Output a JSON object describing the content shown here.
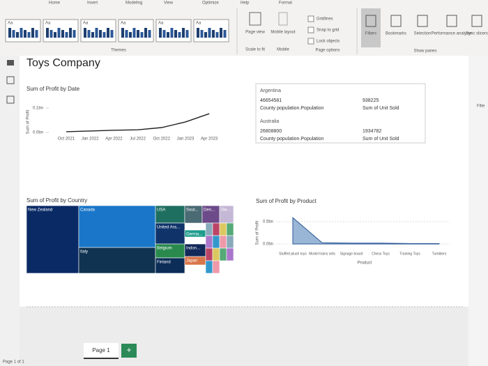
{
  "ribbon": {
    "tabs": [
      "Home",
      "Insert",
      "Modeling",
      "View",
      "Optimize",
      "Help",
      "Format"
    ],
    "theme_label": "Themes",
    "theme_swatch": "Aa",
    "buttons": [
      {
        "label": "Page view",
        "group": "Scale to fit"
      },
      {
        "label": "Mobile layout",
        "group": "Mobile"
      }
    ],
    "page_options": [
      "Gridlines",
      "Snap to grid",
      "Lock objects"
    ],
    "page_options_group": "Page options",
    "panes": [
      "Filters",
      "Bookmarks",
      "Selection",
      "Performance analyzer",
      "Sync slicers"
    ],
    "panes_group": "Show panes"
  },
  "report": {
    "title": "Toys Company"
  },
  "line_chart": {
    "type": "line",
    "title": "Sum of Profit by Date",
    "y_axis_title": "Sum of Profit",
    "categories": [
      "Oct 2021",
      "Jan 2022",
      "Apr 2022",
      "Jul 2022",
      "Oct 2022",
      "Jan 2023",
      "Apr 2023"
    ],
    "values": [
      0.003,
      0.006,
      0.009,
      0.011,
      0.02,
      0.043,
      0.077
    ],
    "color": "#1f1f1f",
    "ylim": [
      0,
      0.1
    ],
    "yticks": [
      {
        "value": 0,
        "label": "0.0bn"
      },
      {
        "value": 0.1,
        "label": "0.1bn"
      }
    ]
  },
  "table": {
    "rows": [
      [
        "Argentina",
        "46654581",
        "County population.Population",
        "938225",
        "Sum of Unit Sold"
      ],
      [
        "Australia",
        "26808800",
        "County population.Population",
        "1934782",
        "Sum of Unit Sold"
      ]
    ]
  },
  "treemap": {
    "title": "Sum of Profit by Country",
    "tiles": [
      "New Zealand",
      "Canada",
      "Italy",
      "USA",
      "Sout...",
      "Den...",
      "Sw...",
      "United Ara...",
      "Germa...",
      "Belgium",
      "Indon...",
      "Finland",
      "Japan"
    ]
  },
  "area_chart": {
    "type": "area",
    "title": "Sum of Profit by Product",
    "x_axis_title": "Product",
    "y_axis_title": "Sum of Profit",
    "categories": [
      "Stuffed plush toys",
      "Model trains sets",
      "Signage board",
      "Chess Toys",
      "Training Toys",
      "Tumblers"
    ],
    "values": [
      0.59,
      0.03,
      0.02,
      0.02,
      0.01,
      0.01
    ],
    "color": "#9ab6d6",
    "ylim": [
      0,
      0.5
    ],
    "yticks": [
      {
        "value": 0,
        "label": "0.0bn"
      },
      {
        "value": 0.5,
        "label": "0.5bn"
      }
    ]
  },
  "pages": {
    "tab": "Page 1",
    "add": "+",
    "status": "Page 1 of 1"
  },
  "side": {
    "filters": "Filte"
  }
}
